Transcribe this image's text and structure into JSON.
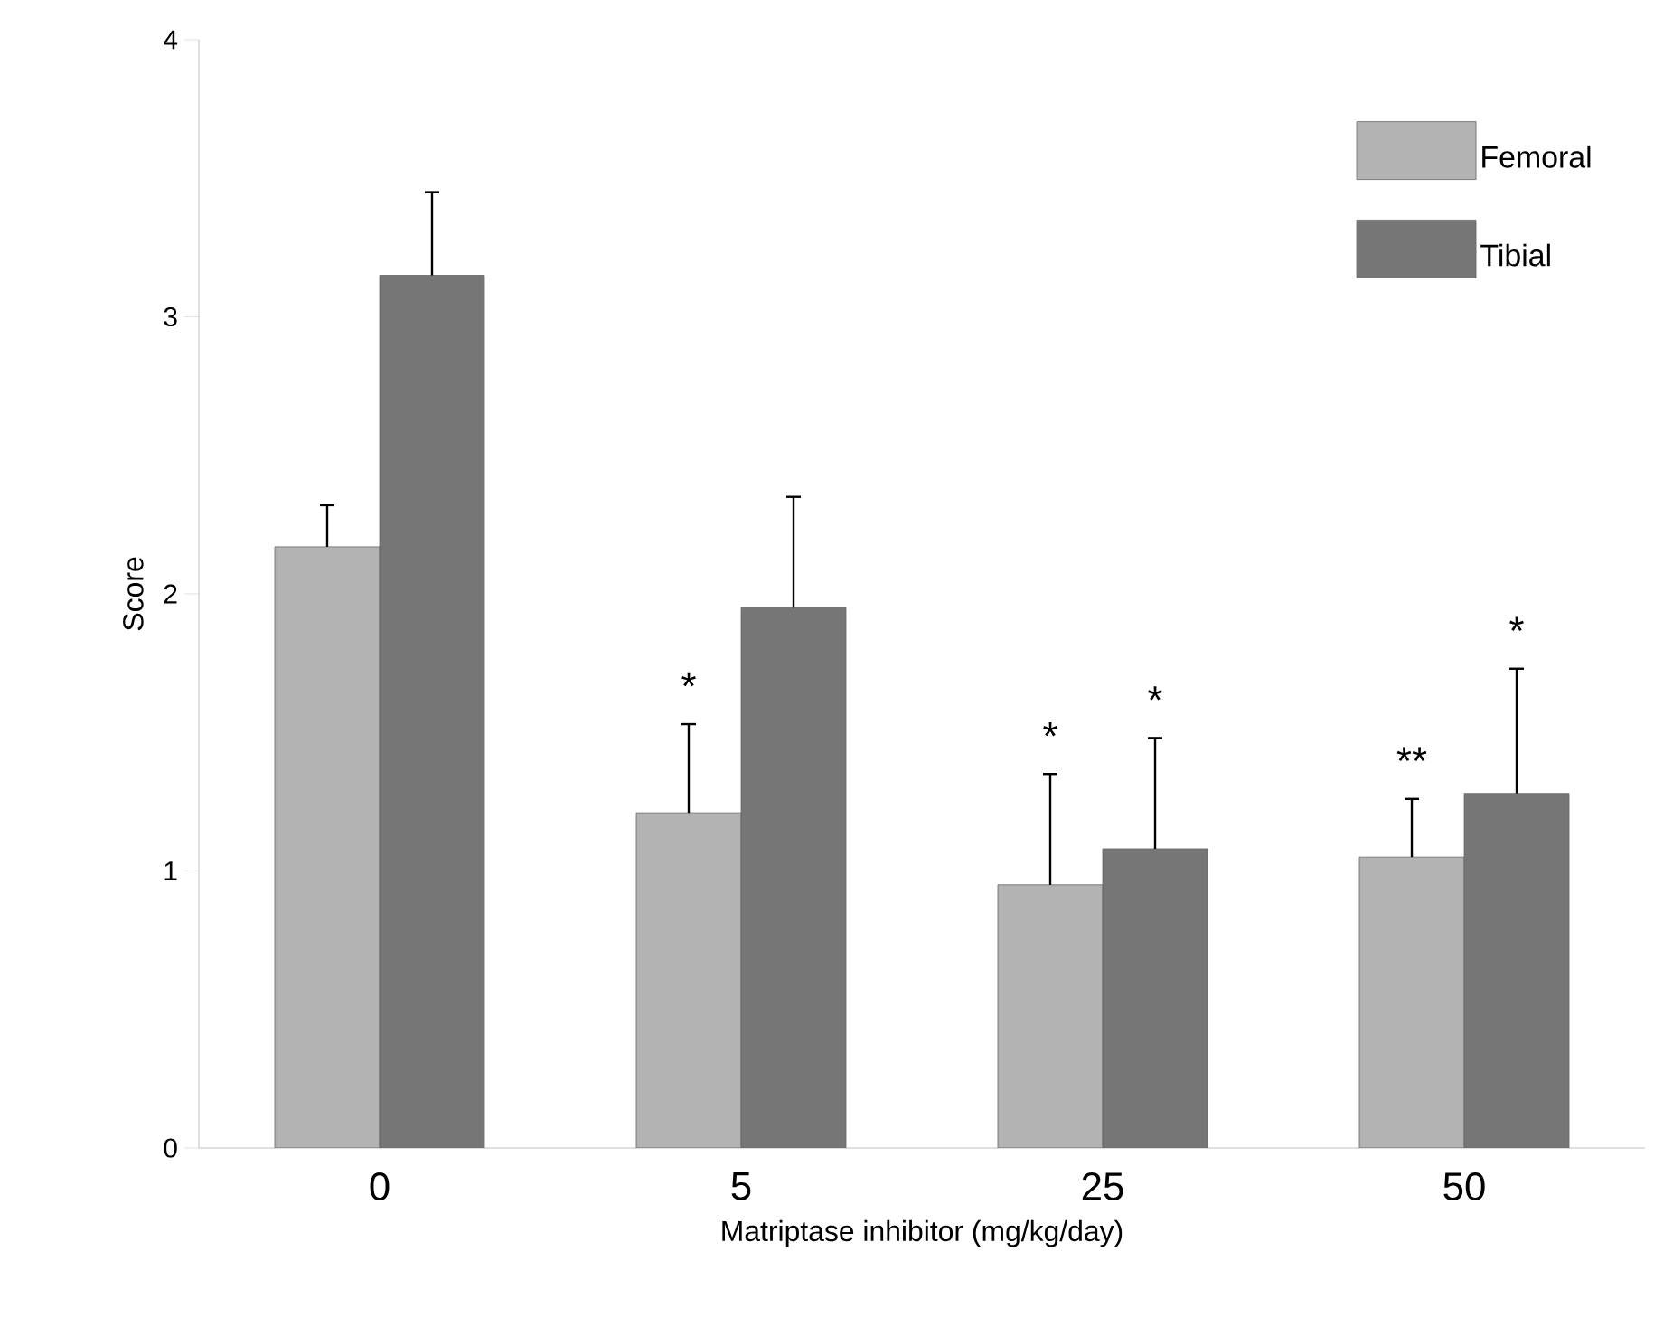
{
  "chart_data": {
    "type": "bar",
    "xlabel": "Matriptase inhibitor (mg/kg/day)",
    "ylabel": "Score",
    "categories": [
      "0",
      "5",
      "25",
      "50"
    ],
    "series": [
      {
        "name": "Femoral",
        "color": "#b3b3b3",
        "values": [
          2.17,
          1.21,
          0.95,
          1.05
        ],
        "errors": [
          0.15,
          0.32,
          0.4,
          0.21
        ]
      },
      {
        "name": "Tibial",
        "color": "#767676",
        "values": [
          3.15,
          1.95,
          1.08,
          1.28
        ],
        "errors": [
          0.3,
          0.4,
          0.4,
          0.45
        ]
      }
    ],
    "ylim": [
      0,
      4
    ],
    "yticks": [
      0,
      1,
      2,
      3,
      4
    ],
    "legend": "top right",
    "grid": false,
    "annotations": [
      "*",
      "*",
      "*",
      "**",
      "*"
    ]
  }
}
